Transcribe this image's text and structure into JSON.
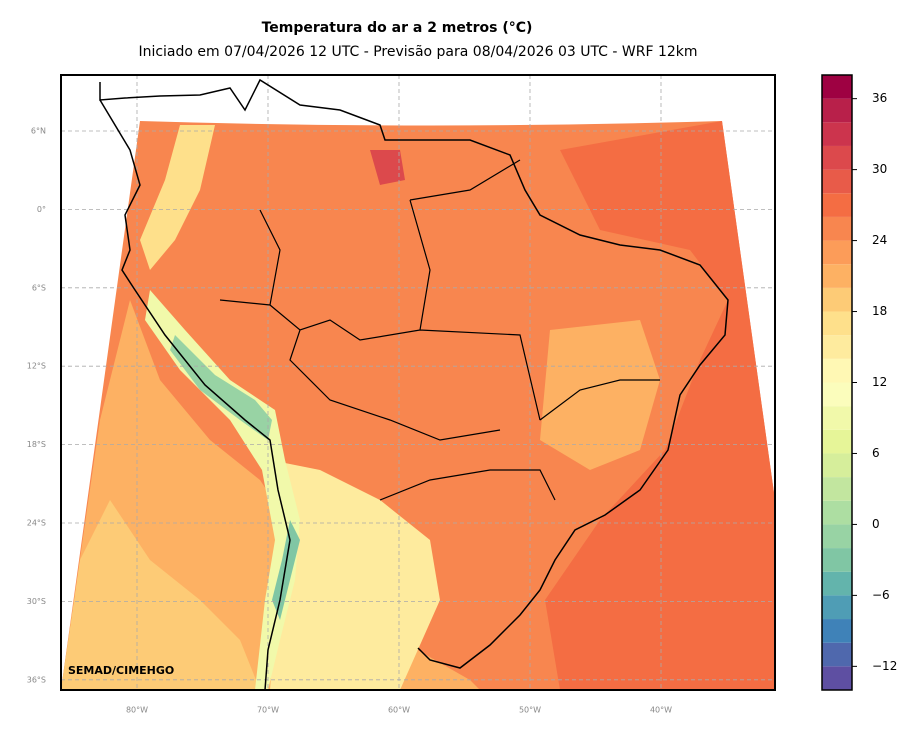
{
  "title": "Temperatura do ar a 2 metros (°C)",
  "subtitle": "Iniciado em 07/04/2026 12 UTC - Previsão para 08/04/2026 03 UTC - WRF 12km",
  "credit": "SEMAD/CIMEHGO",
  "map": {
    "lat_labels": [
      "6°N",
      "0°",
      "6°S",
      "12°S",
      "18°S",
      "24°S",
      "30°S",
      "36°S"
    ],
    "lon_labels": [
      "80°W",
      "70°W",
      "60°W",
      "50°W",
      "40°W"
    ]
  },
  "colorbar": {
    "levels": [
      -14,
      -12,
      -10,
      -8,
      -6,
      -4,
      -2,
      0,
      2,
      4,
      6,
      8,
      10,
      12,
      14,
      16,
      18,
      20,
      22,
      24,
      26,
      28,
      30,
      32,
      34,
      36,
      38
    ],
    "colors": [
      "#5e4fa2",
      "#4f68ad",
      "#3f82b8",
      "#4f9db5",
      "#63b4ac",
      "#80c6a4",
      "#98d3a4",
      "#addea2",
      "#c2e69f",
      "#d6ee9b",
      "#e6f598",
      "#f1f9aa",
      "#fbfdbc",
      "#fff8b4",
      "#feeb9e",
      "#fee08b",
      "#fdcb76",
      "#fdb163",
      "#fc9c59",
      "#f8864f",
      "#f46d43",
      "#e85b49",
      "#dc494c",
      "#cc344d",
      "#b8204a",
      "#9e0142"
    ],
    "ticks": [
      {
        "value": -12,
        "label": "−12"
      },
      {
        "value": -6,
        "label": "−6"
      },
      0,
      6,
      12,
      18,
      24,
      30,
      36
    ]
  }
}
